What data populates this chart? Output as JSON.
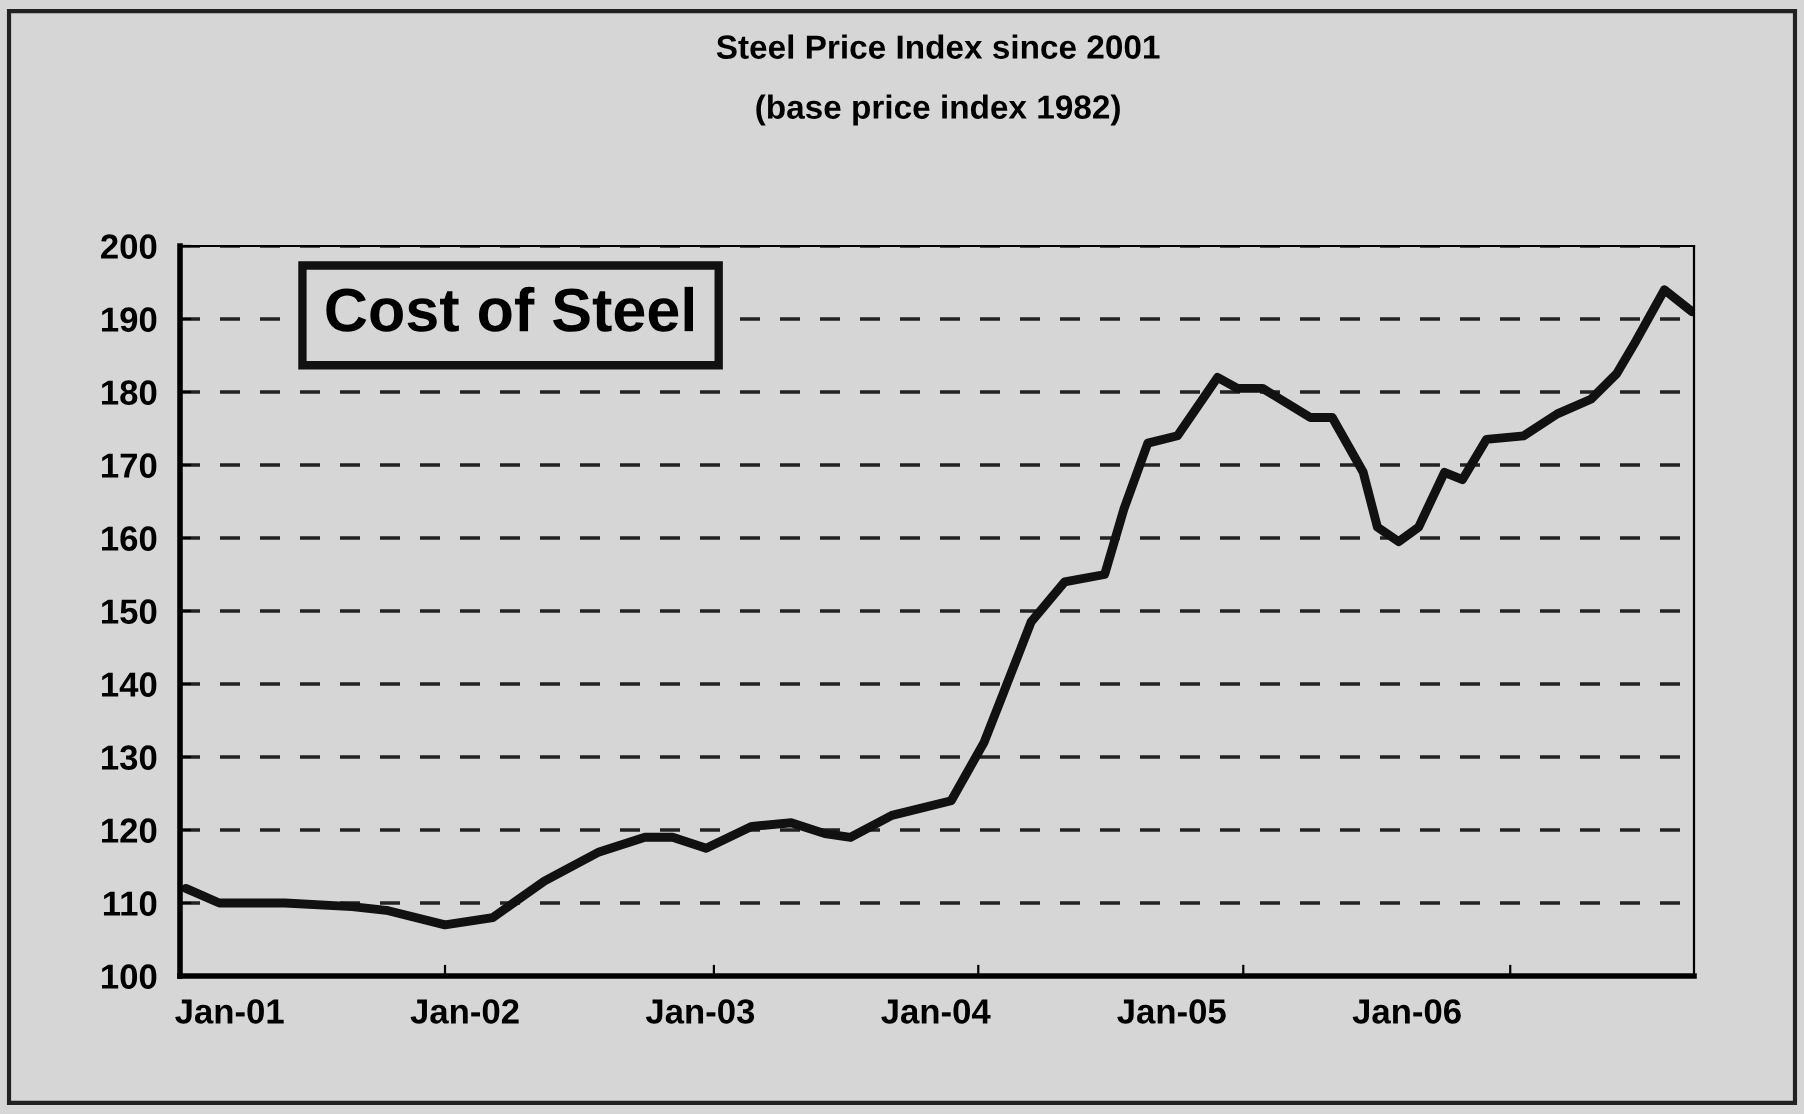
{
  "chart_data": {
    "type": "line",
    "title": "Steel Price Index since 2001",
    "subtitle": "(base price index 1982)",
    "annotations": [
      "Cost of Steel"
    ],
    "x": [
      "2000-10-25",
      "2000-12-16",
      "2001-03-28",
      "2001-07-10",
      "2001-09-01",
      "2001-12-01",
      "2002-02-13",
      "2002-05-04",
      "2002-07-28",
      "2002-10-07",
      "2002-11-19",
      "2003-01-10",
      "2003-03-22",
      "2003-05-22",
      "2003-07-13",
      "2003-08-22",
      "2003-10-25",
      "2004-01-25",
      "2004-03-16",
      "2004-04-16",
      "2004-05-28",
      "2004-07-19",
      "2004-09-19",
      "2004-10-19",
      "2004-11-25",
      "2005-01-10",
      "2005-03-13",
      "2005-04-13",
      "2005-05-22",
      "2005-08-04",
      "2005-09-07",
      "2005-10-25",
      "2005-11-16",
      "2005-12-19",
      "2006-01-19",
      "2006-02-28",
      "2006-03-28",
      "2006-05-04",
      "2006-07-01",
      "2006-08-22",
      "2006-10-13",
      "2006-11-22",
      "2006-12-22",
      "2007-02-04",
      "2007-03-19"
    ],
    "series": [
      {
        "color": "#111111",
        "values": [
          112,
          110,
          110,
          109.5,
          109,
          107,
          108,
          113,
          117,
          119,
          119,
          117.5,
          120.5,
          121,
          119.5,
          119,
          122,
          124,
          132,
          139,
          148.5,
          154,
          155,
          164,
          173,
          174,
          182,
          180.5,
          180.5,
          176.5,
          176.5,
          169,
          161.5,
          159.5,
          161.5,
          169,
          168,
          173.5,
          174,
          177,
          179,
          182.5,
          187,
          194,
          191
        ]
      }
    ],
    "xlim": [
      "2000-10-16",
      "2007-03-22"
    ],
    "xticks": [
      {
        "value": "2001-01-01",
        "label": "Jan-01"
      },
      {
        "value": "2001-12-01",
        "label": null
      },
      {
        "value": "2002-01-01",
        "label": "Jan-02"
      },
      {
        "value": "2003-01-01",
        "label": "Jan-03"
      },
      {
        "value": "2003-01-22",
        "label": null
      },
      {
        "value": "2004-01-01",
        "label": "Jan-04"
      },
      {
        "value": "2004-03-07",
        "label": null
      },
      {
        "value": "2005-01-01",
        "label": "Jan-05"
      },
      {
        "value": "2005-04-22",
        "label": null
      },
      {
        "value": "2006-01-01",
        "label": "Jan-06"
      },
      {
        "value": "2006-06-10",
        "label": null
      }
    ],
    "ylim": [
      100,
      200
    ],
    "yticks": [
      100,
      110,
      120,
      130,
      140,
      150,
      160,
      170,
      180,
      190,
      200
    ],
    "grid": "y",
    "line_style": "solid",
    "marker": "none",
    "legend": false
  }
}
